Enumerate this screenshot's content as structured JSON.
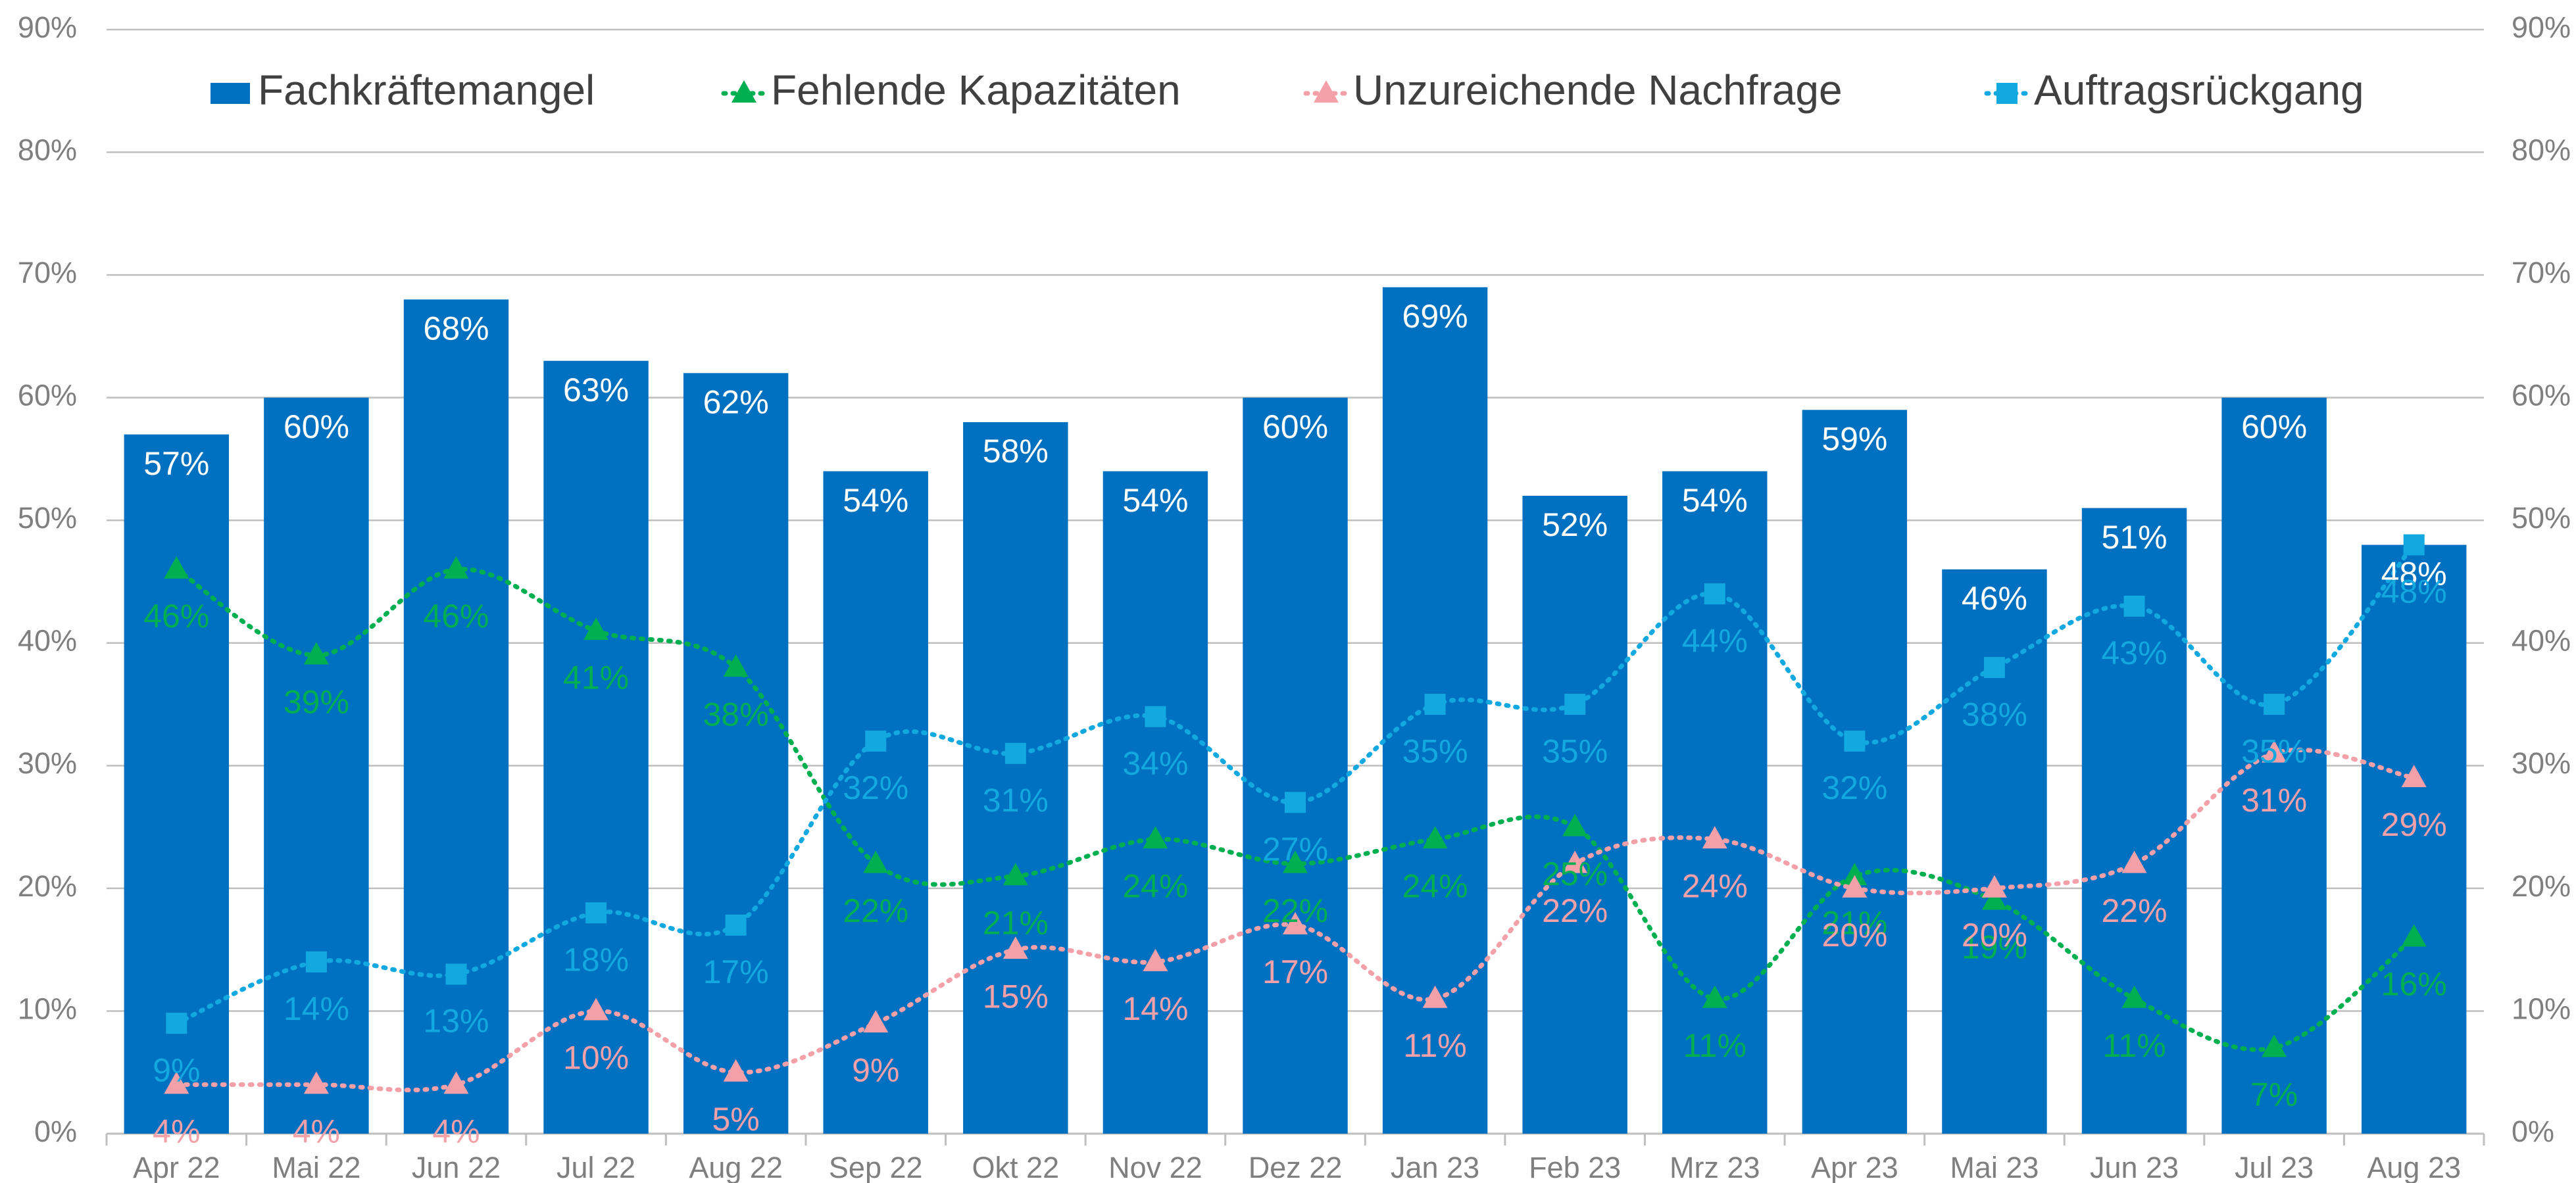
{
  "chart_data": {
    "type": "bar_line",
    "categories": [
      "Apr 22",
      "Mai 22",
      "Jun 22",
      "Jul 22",
      "Aug 22",
      "Sep 22",
      "Okt 22",
      "Nov 22",
      "Dez 22",
      "Jan 23",
      "Feb 23",
      "Mrz 23",
      "Apr 23",
      "Mai 23",
      "Jun 23",
      "Jul 23",
      "Aug 23"
    ],
    "series": [
      {
        "name": "Fachkräftemangel",
        "type": "bar",
        "color": "#0070c0",
        "label_color": "#ffffff",
        "values": [
          57,
          60,
          68,
          63,
          62,
          54,
          58,
          54,
          60,
          69,
          52,
          54,
          59,
          46,
          51,
          60,
          48
        ],
        "value_labels": [
          "57%",
          "60%",
          "68%",
          "63%",
          "62%",
          "54%",
          "58%",
          "54%",
          "60%",
          "69%",
          "52%",
          "54%",
          "59%",
          "46%",
          "51%",
          "60%",
          "48%"
        ]
      },
      {
        "name": "Fehlende Kapazitäten",
        "type": "line",
        "marker": "triangle",
        "color": "#00b050",
        "values": [
          46,
          39,
          46,
          41,
          38,
          22,
          21,
          24,
          22,
          24,
          25,
          11,
          21,
          19,
          11,
          7,
          16
        ],
        "value_labels": [
          "46%",
          "39%",
          "46%",
          "41%",
          "38%",
          "22%",
          "21%",
          "24%",
          "22%",
          "24%",
          "25%",
          "11%",
          "21%",
          "19%",
          "11%",
          "7%",
          "16%"
        ]
      },
      {
        "name": "Unzureichende Nachfrage",
        "type": "line",
        "marker": "triangle",
        "color": "#f4a0a8",
        "values": [
          4,
          4,
          4,
          10,
          5,
          9,
          15,
          14,
          17,
          11,
          22,
          24,
          20,
          20,
          22,
          31,
          29
        ],
        "value_labels": [
          "4%",
          "4%",
          "4%",
          "10%",
          "5%",
          "9%",
          "15%",
          "14%",
          "17%",
          "11%",
          "22%",
          "24%",
          "20%",
          "20%",
          "22%",
          "31%",
          "29%"
        ]
      },
      {
        "name": "Auftragsrückgang",
        "type": "line",
        "marker": "square",
        "color": "#12a8e0",
        "values": [
          9,
          14,
          13,
          18,
          17,
          32,
          31,
          34,
          27,
          35,
          35,
          44,
          32,
          38,
          43,
          35,
          48
        ],
        "value_labels": [
          "9%",
          "14%",
          "13%",
          "18%",
          "17%",
          "32%",
          "31%",
          "34%",
          "27%",
          "35%",
          "35%",
          "44%",
          "32%",
          "38%",
          "43%",
          "35%",
          "48%"
        ]
      }
    ],
    "ylim": [
      0,
      90
    ],
    "yticks": [
      {
        "value": 0,
        "label": "0%"
      },
      {
        "value": 10,
        "label": "10%"
      },
      {
        "value": 20,
        "label": "20%"
      },
      {
        "value": 30,
        "label": "30%"
      },
      {
        "value": 40,
        "label": "40%"
      },
      {
        "value": 50,
        "label": "50%"
      },
      {
        "value": 60,
        "label": "60%"
      },
      {
        "value": 70,
        "label": "70%"
      },
      {
        "value": 80,
        "label": "80%"
      },
      {
        "value": 90,
        "label": "90%"
      }
    ],
    "y2lim": [
      0,
      90
    ],
    "y2ticks": [
      {
        "value": 0,
        "label": "0%"
      },
      {
        "value": 10,
        "label": "10%"
      },
      {
        "value": 20,
        "label": "20%"
      },
      {
        "value": 30,
        "label": "30%"
      },
      {
        "value": 40,
        "label": "40%"
      },
      {
        "value": 50,
        "label": "50%"
      },
      {
        "value": 60,
        "label": "60%"
      },
      {
        "value": 70,
        "label": "70%"
      },
      {
        "value": 80,
        "label": "80%"
      },
      {
        "value": 90,
        "label": "90%"
      }
    ],
    "grid": true,
    "legend": "top"
  }
}
